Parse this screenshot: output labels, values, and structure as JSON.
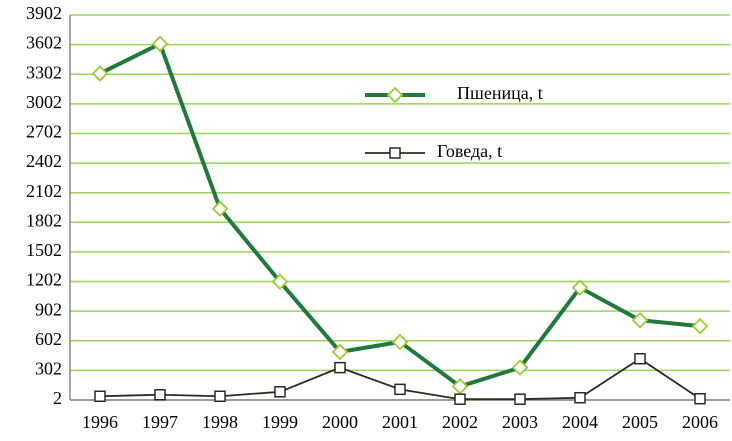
{
  "chart_data": {
    "type": "line",
    "categories": [
      "1996",
      "1997",
      "1998",
      "1999",
      "2000",
      "2001",
      "2002",
      "2003",
      "2004",
      "2005",
      "2006"
    ],
    "series": [
      {
        "name": "Пшеница, t",
        "color": "#217a3c",
        "marker": "diamond",
        "marker_color": "#9acd32",
        "values": [
          3310,
          3610,
          1940,
          1200,
          490,
          590,
          140,
          330,
          1140,
          810,
          750
        ]
      },
      {
        "name": "Говеда, t",
        "color": "#2b2b1e",
        "marker": "square",
        "marker_color": "#2b2b1e",
        "values": [
          40,
          55,
          40,
          85,
          330,
          110,
          10,
          10,
          25,
          420,
          15
        ]
      }
    ],
    "ylim": [
      2,
      3902
    ],
    "yticks": [
      2,
      302,
      602,
      902,
      1202,
      1502,
      1802,
      2102,
      2402,
      2702,
      3002,
      3302,
      3602,
      3902
    ],
    "grid": true,
    "grid_color": "#9bd35a",
    "legend": "upper right"
  }
}
